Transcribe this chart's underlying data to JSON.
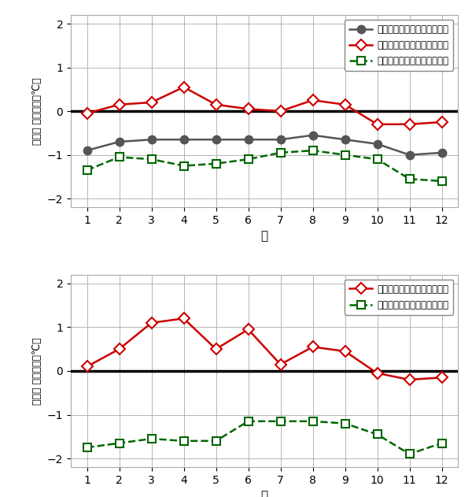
{
  "months": [
    1,
    2,
    3,
    4,
    5,
    6,
    7,
    8,
    9,
    10,
    11,
    12
  ],
  "top_avg": [
    -0.9,
    -0.7,
    -0.65,
    -0.65,
    -0.65,
    -0.65,
    -0.65,
    -0.55,
    -0.65,
    -0.75,
    -1.0,
    -0.95
  ],
  "top_max": [
    -0.05,
    0.15,
    0.2,
    0.55,
    0.15,
    0.05,
    0.0,
    0.25,
    0.15,
    -0.3,
    -0.3,
    -0.25
  ],
  "top_min": [
    -1.35,
    -1.05,
    -1.1,
    -1.25,
    -1.2,
    -1.1,
    -0.95,
    -0.9,
    -1.0,
    -1.1,
    -1.55,
    -1.6
  ],
  "bot_max": [
    0.1,
    0.5,
    1.1,
    1.2,
    0.5,
    0.95,
    0.15,
    0.55,
    0.45,
    -0.05,
    -0.2,
    -0.15
  ],
  "bot_min": [
    -1.75,
    -1.65,
    -1.55,
    -1.6,
    -1.6,
    -1.15,
    -1.15,
    -1.15,
    -1.2,
    -1.45,
    -1.9,
    -1.65
  ],
  "top_ylabel": "月平均 気温の差（℃）",
  "bot_ylabel": "快晴日 気温の差（℃）",
  "xlabel": "月",
  "top_legend_avg": "平均気温（北の丸－大手町）",
  "top_legend_max": "最高気温（北の丸－大手町）",
  "top_legend_min": "最低気温（北の丸－大手町）",
  "bot_legend_max": "最高気温（北の丸－大手町）",
  "bot_legend_min": "最低気温（北の丸－大手町）",
  "ylim": [
    -2.2,
    2.2
  ],
  "yticks": [
    -2,
    -1,
    0,
    1,
    2
  ],
  "color_avg": "#555555",
  "color_max": "#cc0000",
  "color_min": "#006600",
  "bg_color": "#ffffff"
}
